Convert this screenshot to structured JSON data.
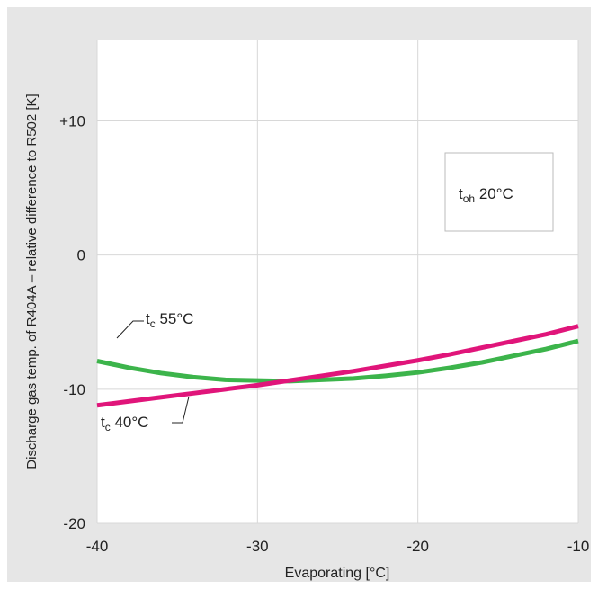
{
  "chart_data": {
    "type": "line",
    "xlabel": "Evaporating  [°C]",
    "ylabel": "Discharge gas temp. of R404A – relative difference to R502  [K]",
    "xlim": [
      -40,
      -10
    ],
    "ylim": [
      -20,
      16
    ],
    "x_ticks": [
      -40,
      -30,
      -20,
      -10
    ],
    "x_tick_labels": [
      "-40",
      "-30",
      "-20",
      "-10"
    ],
    "y_ticks": [
      -20,
      -10,
      0,
      10
    ],
    "y_tick_labels": [
      "-20",
      "-10",
      "0",
      "+10"
    ],
    "grid": true,
    "series": [
      {
        "name": "tc 55°C",
        "label_main": "t",
        "label_sub": "c",
        "label_rest": " 55°C",
        "color": "#3cb44b",
        "x": [
          -40,
          -38,
          -36,
          -34,
          -32,
          -30,
          -28,
          -26,
          -24,
          -22,
          -20,
          -18,
          -16,
          -14,
          -12,
          -10
        ],
        "y": [
          -7.9,
          -8.4,
          -8.8,
          -9.1,
          -9.3,
          -9.35,
          -9.4,
          -9.3,
          -9.2,
          -9.0,
          -8.75,
          -8.4,
          -8.0,
          -7.5,
          -7.0,
          -6.4
        ]
      },
      {
        "name": "tc 40°C",
        "label_main": "t",
        "label_sub": "c",
        "label_rest": " 40°C",
        "color": "#e0157a",
        "x": [
          -40,
          -38,
          -36,
          -34,
          -32,
          -30,
          -28,
          -26,
          -24,
          -22,
          -20,
          -18,
          -16,
          -14,
          -12,
          -10
        ],
        "y": [
          -11.2,
          -10.9,
          -10.6,
          -10.3,
          -10.0,
          -9.7,
          -9.35,
          -9.0,
          -8.65,
          -8.25,
          -7.85,
          -7.4,
          -6.9,
          -6.4,
          -5.9,
          -5.3
        ]
      }
    ],
    "annotation": {
      "main": "t",
      "sub": "oh",
      "rest": " 20°C"
    }
  }
}
